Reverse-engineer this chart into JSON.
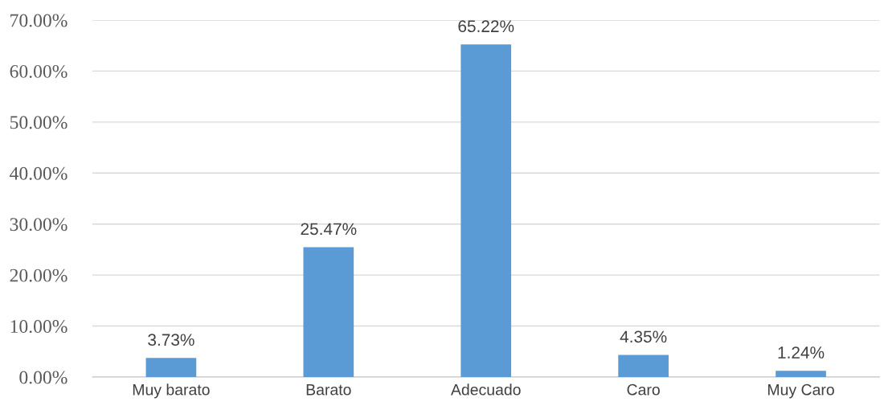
{
  "chart_data": {
    "type": "bar",
    "categories": [
      "Muy barato",
      "Barato",
      "Adecuado",
      "Caro",
      "Muy Caro"
    ],
    "values": [
      3.73,
      25.47,
      65.22,
      4.35,
      1.24
    ],
    "value_labels": [
      "3.73%",
      "25.47%",
      "65.22%",
      "4.35%",
      "1.24%"
    ],
    "color": "#5b9bd5",
    "ylim": [
      0,
      70
    ],
    "yticks": [
      {
        "value": 0,
        "label": "0.00%"
      },
      {
        "value": 10,
        "label": "10.00%"
      },
      {
        "value": 20,
        "label": "20.00%"
      },
      {
        "value": 30,
        "label": "30.00%"
      },
      {
        "value": 40,
        "label": "40.00%"
      },
      {
        "value": 50,
        "label": "50.00%"
      },
      {
        "value": 60,
        "label": "60.00%"
      },
      {
        "value": 70,
        "label": "70.00%"
      }
    ],
    "grid": "y",
    "legend": false
  }
}
